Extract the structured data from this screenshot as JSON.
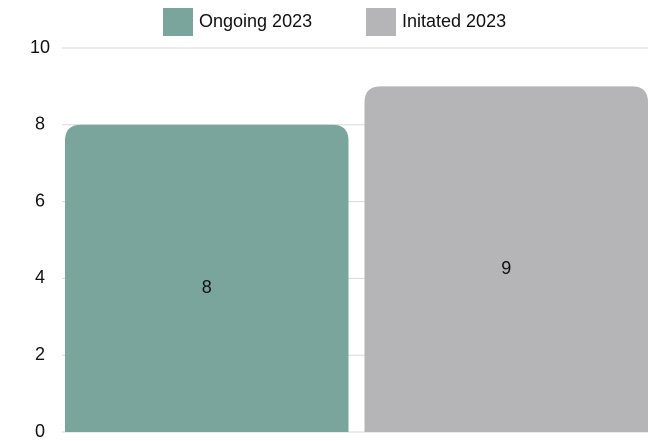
{
  "chart_data": {
    "type": "bar",
    "categories": [
      null
    ],
    "series": [
      {
        "name": "Ongoing 2023",
        "color": "#7aa59d",
        "values": [
          8
        ]
      },
      {
        "name": "Initated 2023",
        "color": "#b5b5b7",
        "values": [
          9
        ]
      }
    ],
    "ylim": [
      0,
      10
    ],
    "yticks": [
      0,
      2,
      4,
      6,
      8,
      10
    ],
    "grid": true,
    "legend": "top"
  }
}
